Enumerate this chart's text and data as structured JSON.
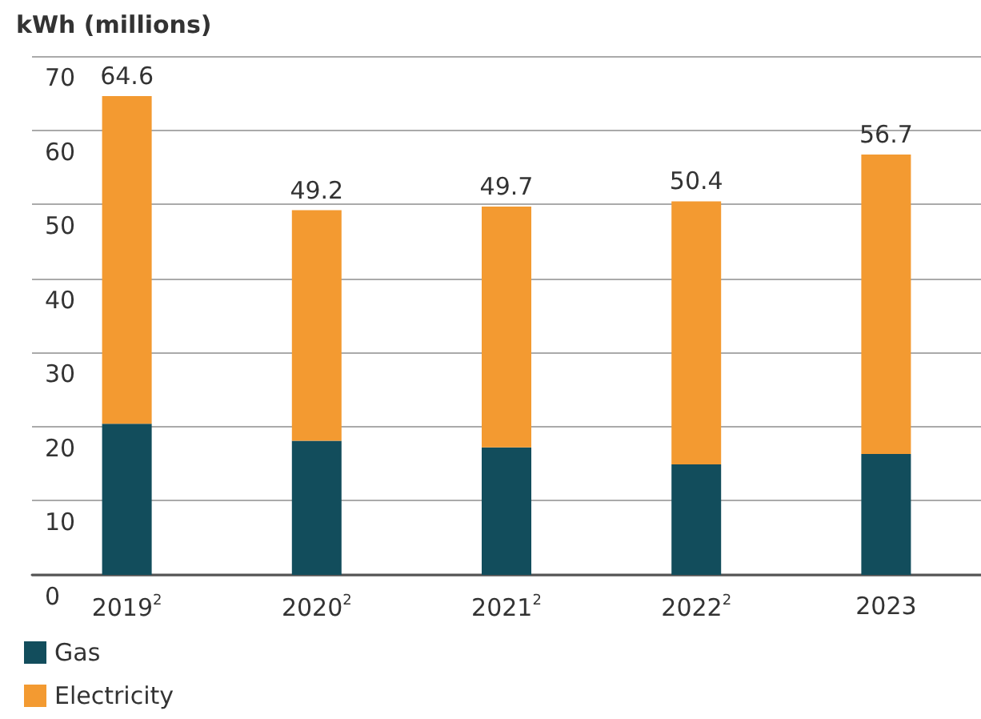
{
  "chart_data": {
    "type": "bar",
    "stacked": true,
    "ylabel": "kWh (millions)",
    "categories": [
      "2019$^{2}$",
      "2020$^{2}$",
      "2021$^{2}$",
      "2022$^{2}$",
      "2023"
    ],
    "series": [
      {
        "name": "Gas",
        "color": "#124d5c",
        "values": [
          20.4,
          18.1,
          17.2,
          14.9,
          16.3
        ]
      },
      {
        "name": "Electricity",
        "color": "#f39a31",
        "values": [
          44.2,
          31.1,
          32.5,
          35.5,
          40.4
        ]
      }
    ],
    "totals": [
      "64.6",
      "49.2",
      "49.7",
      "50.4",
      "56.7"
    ],
    "ylim": [
      0,
      70
    ],
    "yticks": [
      0,
      10,
      20,
      30,
      40,
      50,
      60,
      70
    ],
    "grid": "y",
    "legend": "bottom left"
  }
}
